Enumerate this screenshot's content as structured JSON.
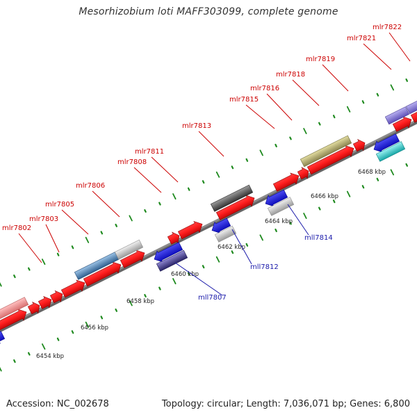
{
  "title": "Mesorhizobium loti MAFF303099, complete genome",
  "footer": {
    "accession": "Accession: NC_002678",
    "summary": "Topology: circular; Length: 7,036,071 bp; Genes: 6,800"
  },
  "colors": {
    "forward_label": "#cc0000",
    "reverse_label": "#1a1aaa",
    "tick": "#1f8a1f",
    "backbone": "#8c8c8c"
  },
  "ruler_labels": [
    "6454 kbp",
    "6456 kbp",
    "6458 kbp",
    "6460 kbp",
    "6462 kbp",
    "6464 kbp",
    "6466 kbp",
    "6468 kbp"
  ],
  "forward_genes": [
    "mlr7802",
    "mlr7803",
    "mlr7805",
    "mlr7806",
    "mlr7808",
    "mlr7811",
    "mlr7813",
    "mlr7815",
    "mlr7816",
    "mlr7818",
    "mlr7819",
    "mlr7821",
    "mlr7822"
  ],
  "reverse_genes": [
    "mll7807",
    "mll7812",
    "mll7814"
  ],
  "feature_colors": [
    "red",
    "pink",
    "steel-blue",
    "light-gray",
    "dark-gray",
    "olive",
    "blue",
    "dark-slate",
    "cyan",
    "lavender"
  ]
}
